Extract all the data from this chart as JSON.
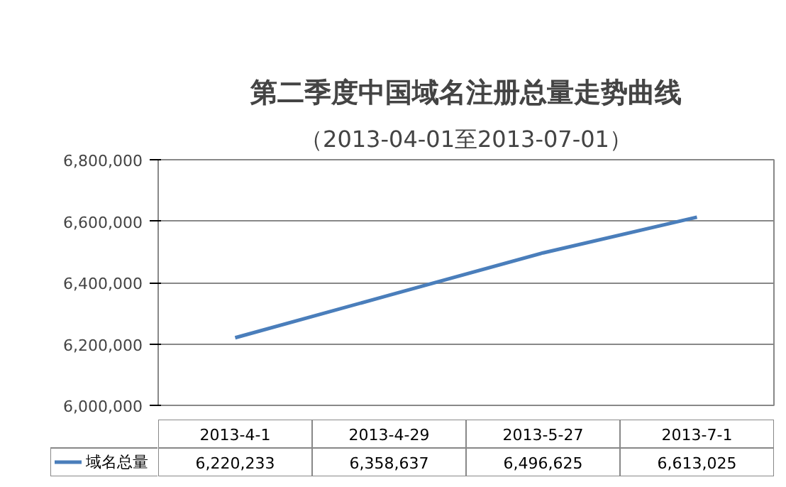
{
  "chart_data": {
    "type": "line",
    "title": "第二季度中国域名注册总量走势曲线",
    "subtitle": "（2013-04-01至2013-07-01）",
    "categories": [
      "2013-4-1",
      "2013-4-29",
      "2013-5-27",
      "2013-7-1"
    ],
    "series": [
      {
        "name": "域名总量",
        "color": "#4a7ebb",
        "values": [
          6220233,
          6358637,
          6496625,
          6613025
        ],
        "value_labels": [
          "6,220,233",
          "6,358,637",
          "6,496,625",
          "6,613,025"
        ]
      }
    ],
    "ylim": [
      6000000,
      6800000
    ],
    "yticks": [
      {
        "value": 6000000,
        "label": "6,000,000"
      },
      {
        "value": 6200000,
        "label": "6,200,000"
      },
      {
        "value": 6400000,
        "label": "6,400,000"
      },
      {
        "value": 6600000,
        "label": "6,600,000"
      },
      {
        "value": 6800000,
        "label": "6,800,000"
      }
    ],
    "grid": "y",
    "legend": "bottom"
  }
}
